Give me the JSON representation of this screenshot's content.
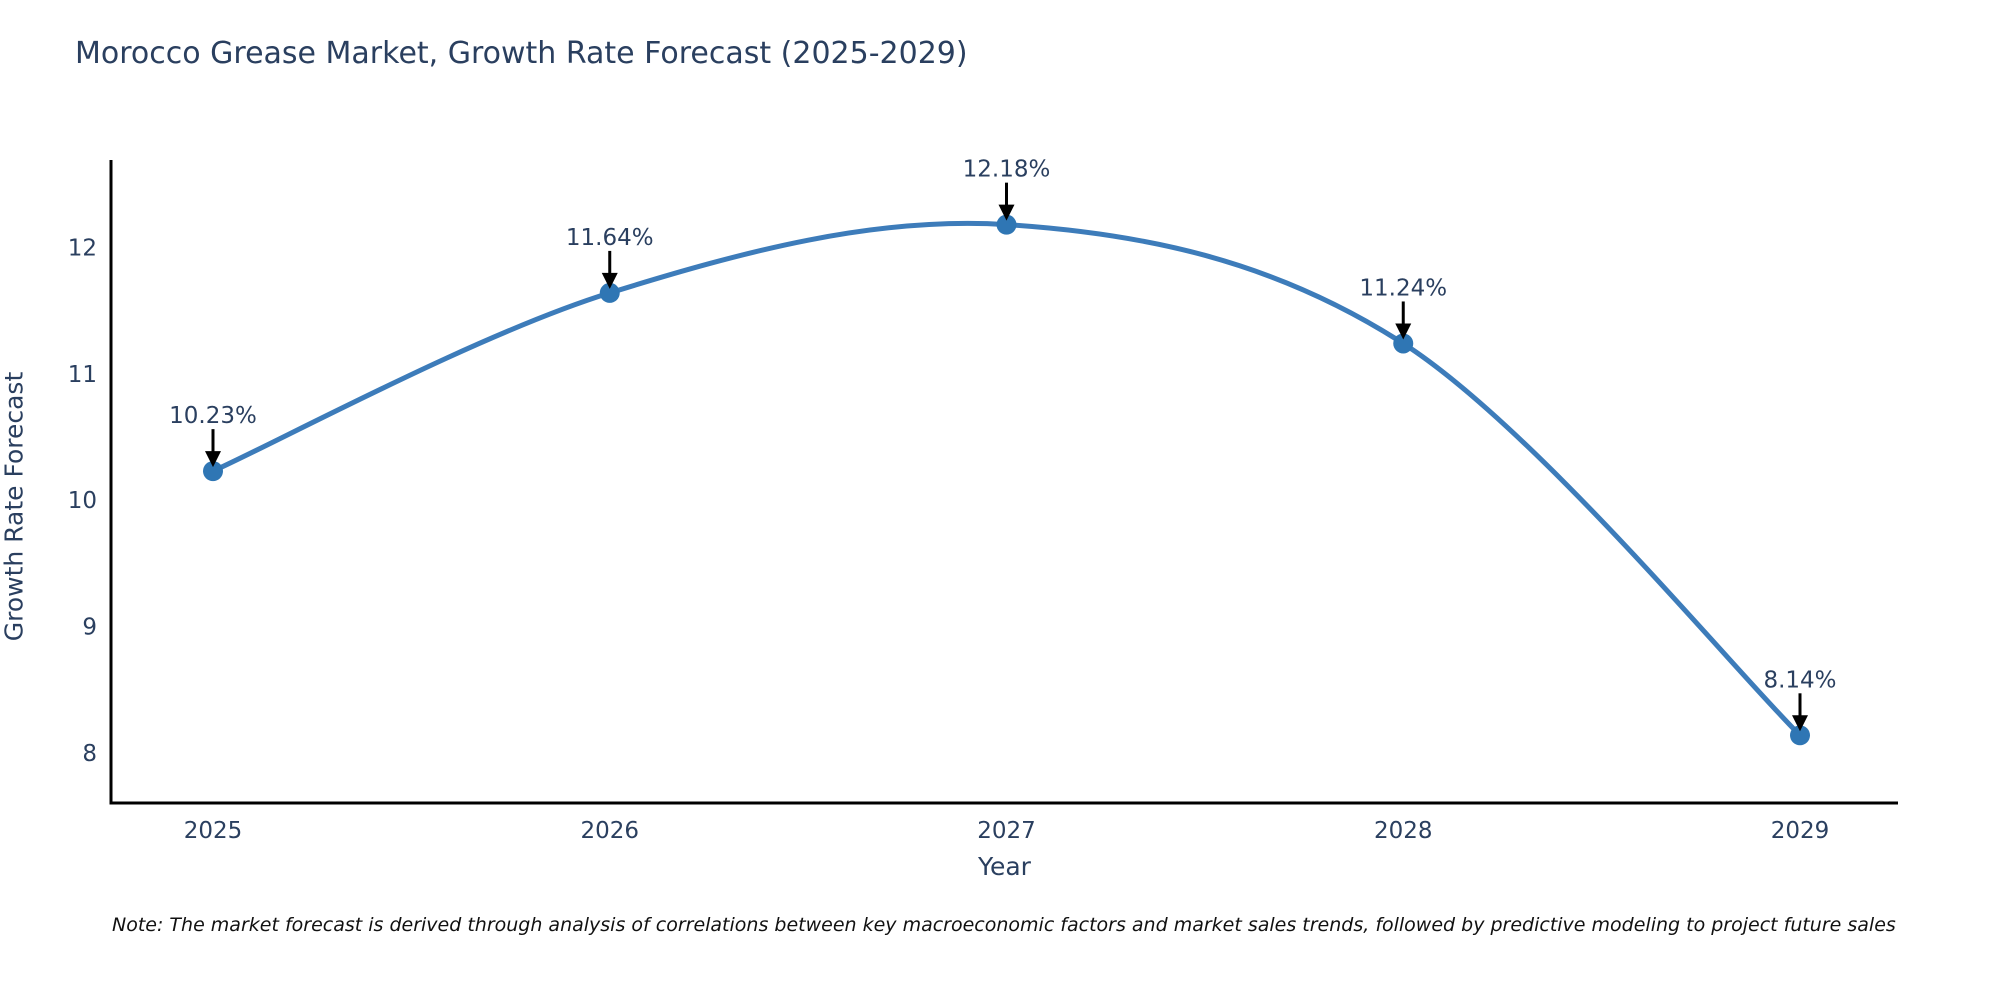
{
  "note": "Note: The market forecast is derived through analysis of correlations between key macroeconomic factors and market sales trends, followed by predictive modeling to project future sales",
  "chart_data": {
    "type": "line",
    "title": "Morocco Grease Market, Growth Rate Forecast (2025-2029)",
    "xlabel": "Year",
    "ylabel": "Growth Rate Forecast",
    "x": [
      2025,
      2026,
      2027,
      2028,
      2029
    ],
    "series": [
      {
        "name": "Growth Rate Forecast",
        "values": [
          10.23,
          11.64,
          12.18,
          11.24,
          8.14
        ]
      }
    ],
    "point_labels": [
      "10.23%",
      "11.64%",
      "12.18%",
      "11.24%",
      "8.14%"
    ],
    "xticks": [
      "2025",
      "2026",
      "2027",
      "2028",
      "2029"
    ],
    "yticks": [
      8,
      9,
      10,
      11,
      12
    ],
    "ylim": [
      7.6,
      12.7
    ],
    "xlim": [
      2024.74,
      2029.25
    ],
    "grid": false,
    "legend": "none",
    "line_shape": "spline",
    "annotations_arrow": "down",
    "colors": {
      "line": "#3d7cba",
      "marker": "#2f76b4",
      "axis": "#000000",
      "text": "#2a3f5f",
      "annotation_arrow": "#000000",
      "note_text": "#111111",
      "background": "#ffffff"
    }
  }
}
